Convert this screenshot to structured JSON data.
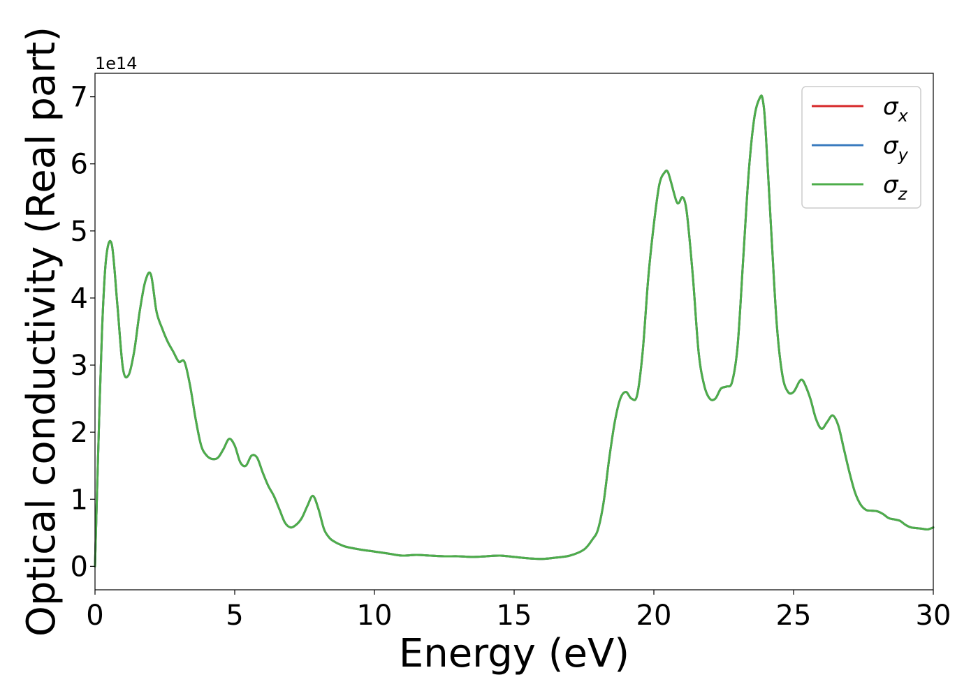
{
  "chart_data": {
    "type": "line",
    "title": "",
    "xlabel": "Energy (eV)",
    "ylabel": "Optical conductivity (Real part)",
    "y_offset_text": "1e14",
    "y_scale": 100000000000000.0,
    "xlim": [
      0,
      30
    ],
    "ylim": [
      -0.35,
      7.35
    ],
    "x_ticks": [
      0,
      5,
      10,
      15,
      20,
      25,
      30
    ],
    "y_ticks": [
      0,
      1,
      2,
      3,
      4,
      5,
      6,
      7
    ],
    "grid": false,
    "legend_position": "top-right",
    "series": [
      {
        "name": "σx",
        "symbol": "σ",
        "subscript": "x",
        "color": "#d62728",
        "ref": "shared"
      },
      {
        "name": "σy",
        "symbol": "σ",
        "subscript": "y",
        "color": "#3a7bbf",
        "ref": "shared"
      },
      {
        "name": "σz",
        "symbol": "σ",
        "subscript": "z",
        "color": "#4dad4a",
        "ref": "shared"
      }
    ],
    "shared_curve": {
      "x": [
        0,
        0.1,
        0.25,
        0.4,
        0.6,
        0.8,
        1.0,
        1.2,
        1.4,
        1.6,
        1.8,
        2.0,
        2.2,
        2.4,
        2.6,
        2.8,
        3.0,
        3.2,
        3.4,
        3.6,
        3.8,
        4.0,
        4.2,
        4.4,
        4.6,
        4.8,
        5.0,
        5.2,
        5.4,
        5.6,
        5.8,
        6.0,
        6.2,
        6.4,
        6.6,
        6.8,
        7.0,
        7.2,
        7.4,
        7.6,
        7.8,
        8.0,
        8.2,
        8.4,
        8.6,
        8.8,
        9.0,
        9.5,
        10.0,
        10.5,
        11.0,
        11.5,
        12.0,
        12.5,
        13.0,
        13.5,
        14.0,
        14.5,
        15.0,
        15.5,
        16.0,
        16.5,
        17.0,
        17.5,
        17.8,
        18.0,
        18.2,
        18.4,
        18.6,
        18.8,
        19.0,
        19.2,
        19.4,
        19.6,
        19.8,
        20.0,
        20.2,
        20.4,
        20.5,
        20.6,
        20.8,
        20.9,
        21.0,
        21.1,
        21.2,
        21.4,
        21.6,
        21.8,
        22.0,
        22.2,
        22.4,
        22.6,
        22.8,
        23.0,
        23.2,
        23.4,
        23.6,
        23.8,
        23.9,
        24.0,
        24.2,
        24.4,
        24.6,
        24.8,
        25.0,
        25.2,
        25.3,
        25.4,
        25.6,
        25.8,
        26.0,
        26.2,
        26.4,
        26.6,
        26.8,
        27.0,
        27.2,
        27.4,
        27.6,
        27.8,
        28.0,
        28.2,
        28.4,
        28.6,
        28.8,
        29.0,
        29.2,
        29.4,
        29.6,
        29.8,
        30.0
      ],
      "y": [
        0.0,
        1.5,
        3.5,
        4.6,
        4.8,
        3.9,
        2.95,
        2.85,
        3.2,
        3.8,
        4.25,
        4.35,
        3.8,
        3.55,
        3.35,
        3.2,
        3.05,
        3.05,
        2.7,
        2.2,
        1.8,
        1.65,
        1.6,
        1.62,
        1.75,
        1.9,
        1.8,
        1.55,
        1.5,
        1.65,
        1.62,
        1.4,
        1.2,
        1.05,
        0.85,
        0.65,
        0.58,
        0.62,
        0.72,
        0.9,
        1.05,
        0.85,
        0.55,
        0.42,
        0.36,
        0.32,
        0.29,
        0.25,
        0.22,
        0.19,
        0.16,
        0.17,
        0.16,
        0.15,
        0.15,
        0.14,
        0.15,
        0.16,
        0.14,
        0.12,
        0.11,
        0.13,
        0.16,
        0.25,
        0.4,
        0.55,
        0.95,
        1.6,
        2.15,
        2.5,
        2.6,
        2.5,
        2.55,
        3.2,
        4.3,
        5.1,
        5.7,
        5.88,
        5.88,
        5.75,
        5.45,
        5.42,
        5.5,
        5.45,
        5.2,
        4.3,
        3.2,
        2.7,
        2.5,
        2.5,
        2.65,
        2.68,
        2.75,
        3.3,
        4.6,
        5.9,
        6.7,
        6.99,
        6.95,
        6.5,
        5.0,
        3.6,
        2.85,
        2.6,
        2.6,
        2.75,
        2.78,
        2.72,
        2.5,
        2.2,
        2.05,
        2.15,
        2.25,
        2.1,
        1.75,
        1.4,
        1.1,
        0.92,
        0.84,
        0.83,
        0.82,
        0.78,
        0.72,
        0.7,
        0.68,
        0.62,
        0.58,
        0.57,
        0.56,
        0.55,
        0.58
      ]
    }
  }
}
